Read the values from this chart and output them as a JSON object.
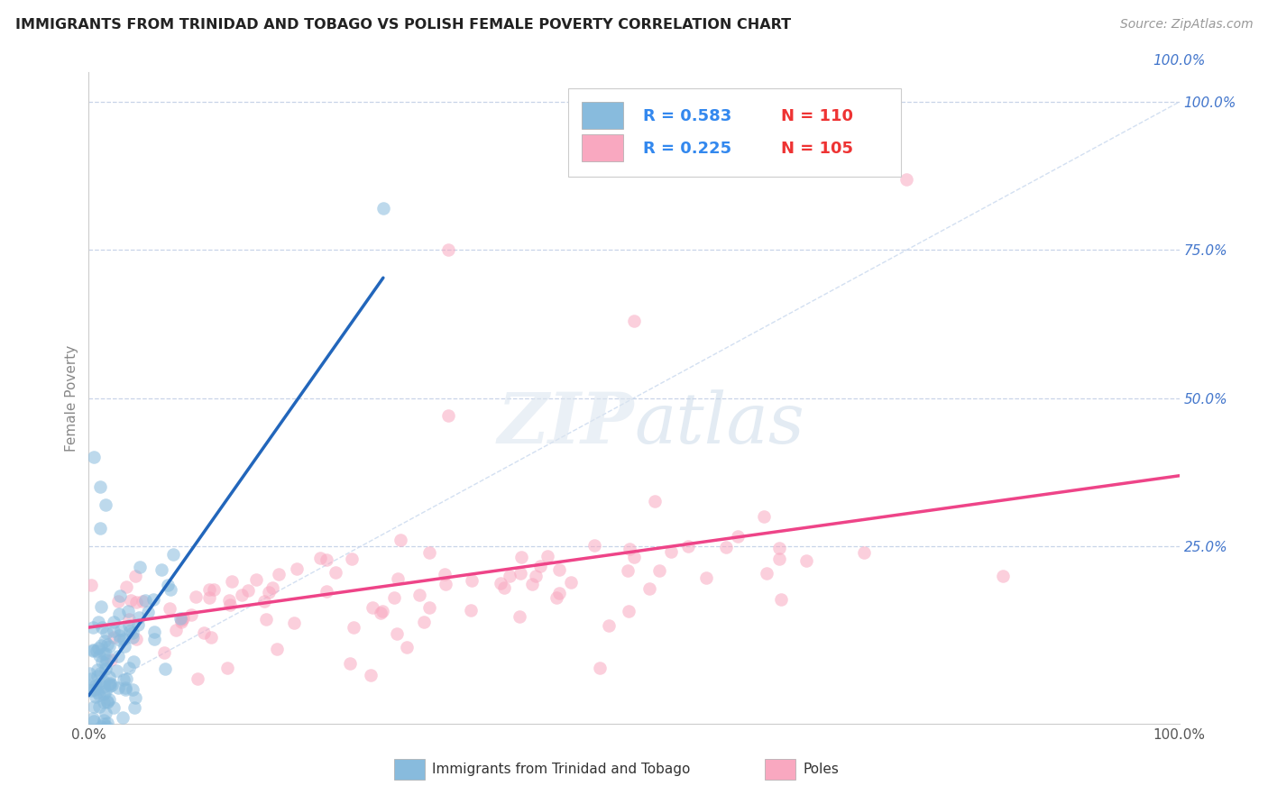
{
  "title": "IMMIGRANTS FROM TRINIDAD AND TOBAGO VS POLISH FEMALE POVERTY CORRELATION CHART",
  "source": "Source: ZipAtlas.com",
  "ylabel": "Female Poverty",
  "legend_labels": [
    "Immigrants from Trinidad and Tobago",
    "Poles"
  ],
  "R_tt": 0.583,
  "N_tt": 110,
  "R_pol": 0.225,
  "N_pol": 105,
  "tt_color": "#88bbdd",
  "pol_color": "#f9a8c0",
  "tt_line_color": "#2266bb",
  "pol_line_color": "#ee4488",
  "ref_line_color": "#c8d8ee",
  "background_color": "#ffffff",
  "grid_color": "#c8d4e8",
  "title_color": "#222222",
  "source_color": "#999999",
  "legend_r_color": "#3388ee",
  "legend_n_color": "#ee3333",
  "right_axis_color": "#4477cc",
  "xlim": [
    0.0,
    1.0
  ],
  "ylim": [
    -0.05,
    1.05
  ],
  "x_ticks": [
    0.0,
    0.25,
    0.5,
    0.75,
    1.0
  ],
  "x_tick_labels": [
    "0.0%",
    "",
    "",
    "",
    "100.0%"
  ],
  "right_y_ticks": [
    0.0,
    0.25,
    0.5,
    0.75,
    1.0
  ],
  "right_y_tick_labels": [
    "",
    "25.0%",
    "50.0%",
    "75.0%",
    "100.0%"
  ]
}
